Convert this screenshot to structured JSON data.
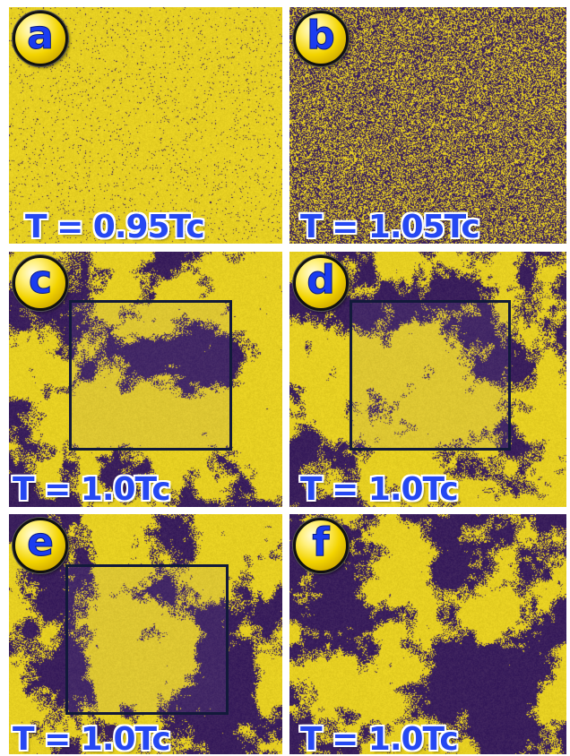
{
  "panels": [
    {
      "id": "a",
      "letter": "a",
      "temperature_label": "T = 0.95Tc",
      "pattern": "ordered",
      "density": 0.03,
      "roi_box": false
    },
    {
      "id": "b",
      "letter": "b",
      "temperature_label": "T = 1.05Tc",
      "pattern": "noise",
      "density": 0.55,
      "roi_box": false
    },
    {
      "id": "c",
      "letter": "c",
      "temperature_label": "T = 1.0Tc",
      "pattern": "critical",
      "density": 0.45,
      "roi_box": true
    },
    {
      "id": "d",
      "letter": "d",
      "temperature_label": "T = 1.0Tc",
      "pattern": "critical",
      "density": 0.45,
      "roi_box": true
    },
    {
      "id": "e",
      "letter": "e",
      "temperature_label": "T = 1.0Tc",
      "pattern": "critical",
      "density": 0.5,
      "roi_box": true
    },
    {
      "id": "f",
      "letter": "f",
      "temperature_label": "T = 1.0Tc",
      "pattern": "critical",
      "density": 0.52,
      "roi_box": false
    }
  ],
  "colors": {
    "spin_up": "#e6cf22",
    "spin_down": "#3a1f5c",
    "roi_border": "#121a3a",
    "badge_letter": "#1a3cf0",
    "label_text": "#2548f2"
  }
}
